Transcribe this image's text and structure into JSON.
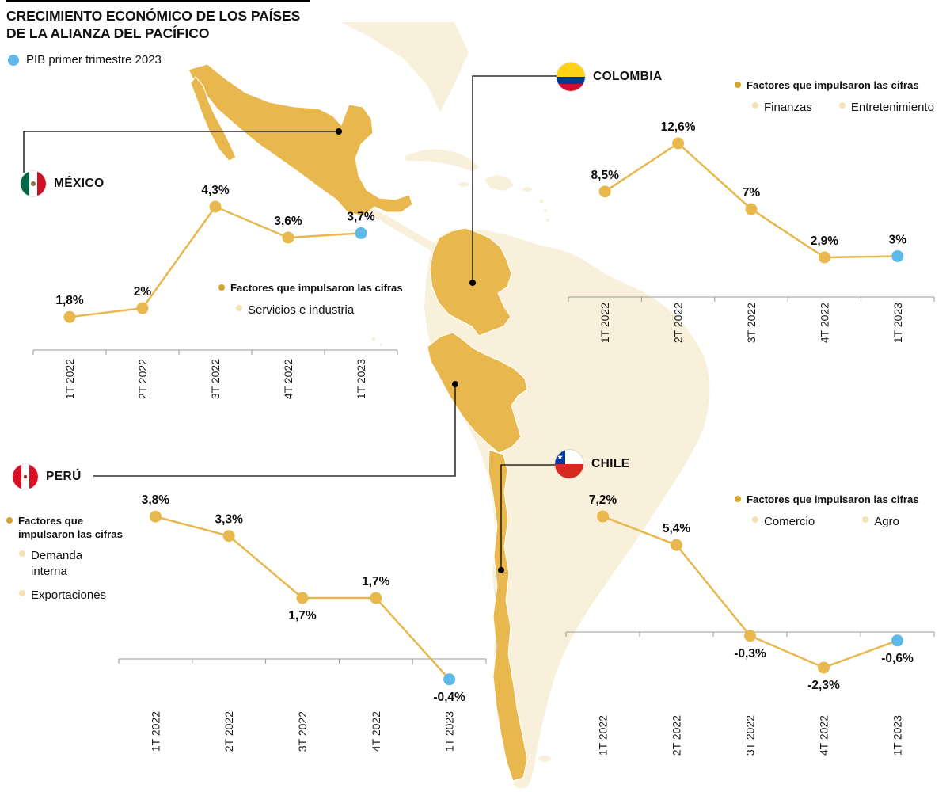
{
  "page": {
    "title_line1": "CRECIMIENTO ECONÓMICO DE LOS PAÍSES",
    "title_line2": "DE LA ALIANZA DEL PACÍFICO",
    "legend_label": "PIB primer trimestre 2023"
  },
  "colors": {
    "gold": "#E8B84E",
    "goldDark": "#D8A32F",
    "paleMap": "#F9F0DB",
    "paleBullet": "#F3E2B3",
    "blue": "#5FB9E8"
  },
  "chart_data": [
    {
      "id": "mexico",
      "type": "line",
      "country": "MÉXICO",
      "categories": [
        "1T 2022",
        "2T 2022",
        "3T 2022",
        "4T 2022",
        "1T 2023"
      ],
      "values": [
        1.8,
        2,
        4.3,
        3.6,
        3.7
      ],
      "point_labels": [
        "1,8%",
        "2%",
        "4,3%",
        "3,6%",
        "3,7%"
      ],
      "label_side": [
        "above",
        "above",
        "above",
        "above",
        "above"
      ],
      "highlight_last": true,
      "ylim": [
        1.05,
        4.3
      ],
      "factors_title": "Factores que impulsaron las cifras",
      "factors": [
        "Servicios e industria"
      ]
    },
    {
      "id": "colombia",
      "type": "line",
      "country": "COLOMBIA",
      "categories": [
        "1T 2022",
        "2T 2022",
        "3T 2022",
        "4T 2022",
        "1T 2023"
      ],
      "values": [
        8.5,
        12.6,
        7,
        2.9,
        3
      ],
      "point_labels": [
        "8,5%",
        "12,6%",
        "7%",
        "2,9%",
        "3%"
      ],
      "label_side": [
        "above",
        "above",
        "above",
        "above",
        "above"
      ],
      "highlight_last": true,
      "ylim": [
        -0.47,
        13
      ],
      "factors_title": "Factores que impulsaron las cifras",
      "factors": [
        "Finanzas",
        "Entretenimiento"
      ]
    },
    {
      "id": "peru",
      "type": "line",
      "country": "PERÚ",
      "categories": [
        "1T 2022",
        "2T 2022",
        "3T 2022",
        "4T 2022",
        "1T 2023"
      ],
      "values": [
        3.8,
        3.3,
        1.7,
        1.7,
        -0.4
      ],
      "point_labels": [
        "3,8%",
        "3,3%",
        "1,7%",
        "1,7%",
        "-0,4%"
      ],
      "label_side": [
        "above",
        "above",
        "below",
        "above",
        "below"
      ],
      "highlight_last": true,
      "ylim": [
        -0.65,
        4.05
      ],
      "factors_title": "Factores que impulsaron las cifras",
      "factors": [
        "Demanda interna",
        "Exportaciones"
      ]
    },
    {
      "id": "chile",
      "type": "line",
      "country": "CHILE",
      "categories": [
        "1T 2022",
        "2T 2022",
        "3T 2022",
        "4T 2022",
        "1T 2023"
      ],
      "values": [
        7.2,
        5.4,
        -0.3,
        -2.3,
        -0.6
      ],
      "point_labels": [
        "7,2%",
        "5,4%",
        "-0,3%",
        "-2,3%",
        "-0,6%"
      ],
      "label_side": [
        "above",
        "above",
        "below",
        "below",
        "below"
      ],
      "highlight_last": true,
      "ylim": [
        -2.9,
        7.8
      ],
      "factors_title": "Factores que impulsaron las cifras",
      "factors": [
        "Comercio",
        "Agro"
      ]
    }
  ]
}
